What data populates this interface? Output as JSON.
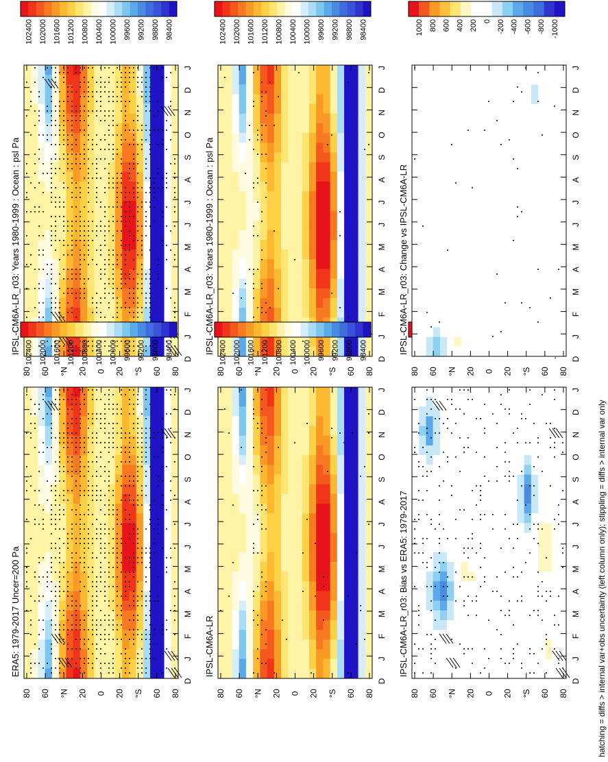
{
  "figure": {
    "footnote": "hatching = diffs > internal var+obs uncertainty (left column only); stippling = diffs > internal var only",
    "colors": {
      "abs_scale": [
        "#e8141b",
        "#f0351b",
        "#f4581e",
        "#f77a22",
        "#f99a27",
        "#fbb830",
        "#fdd146",
        "#fee571",
        "#fff3a6",
        "#fffbe0",
        "#ffffff",
        "#d6eefb",
        "#a9dcf6",
        "#7dc6ef",
        "#5aa9e8",
        "#4a8be2",
        "#3f6ddd",
        "#3a53d9",
        "#2f34cf",
        "#1f13c4"
      ],
      "diff_scale": [
        "#e8141b",
        "#f4581e",
        "#f99a27",
        "#fdc03a",
        "#fee571",
        "#fff7c2",
        "#ffffff",
        "#ffffff",
        "#c8e8f8",
        "#8ed0f2",
        "#5aa9e8",
        "#4a8be2",
        "#3f6ddd",
        "#2f34cf",
        "#1f13c4"
      ]
    }
  },
  "chart_data": [
    {
      "type": "heatmap",
      "title": "IPSL-CM6A-LR_r03: Years 1980-1999 : Ocean : psl Pa",
      "x_ticks": [
        "D",
        "J",
        "F",
        "M",
        "A",
        "M",
        "J",
        "J",
        "A",
        "S",
        "O",
        "N",
        "D",
        "J"
      ],
      "y_ticks": [
        "80",
        "60",
        "°N",
        "20",
        "0",
        "20",
        "°S",
        "60",
        "80"
      ],
      "colorbar_labels": [
        "102400",
        "102000",
        "101600",
        "101200",
        "100800",
        "100400",
        "100000",
        "99600",
        "99200",
        "98800",
        "98400"
      ],
      "field": "abs",
      "stipple": "heavy",
      "hatch": true
    },
    {
      "type": "heatmap",
      "title": "IPSL-CM6A-LR_r03: Years 1980-1999 : Ocean : psl Pa",
      "x_ticks": [
        "D",
        "J",
        "F",
        "M",
        "A",
        "M",
        "J",
        "J",
        "A",
        "S",
        "O",
        "N",
        "D",
        "J"
      ],
      "y_ticks": [
        "80",
        "60",
        "°N",
        "20",
        "0",
        "20",
        "°S",
        "60",
        "80"
      ],
      "colorbar_labels": [
        "102400",
        "102000",
        "101600",
        "101200",
        "100800",
        "100400",
        "100000",
        "99600",
        "99200",
        "98800",
        "98400"
      ],
      "field": "abs",
      "stipple": "light",
      "hatch": false
    },
    {
      "type": "heatmap",
      "title": "ERA5: 1979-2017 Uncer=200 Pa",
      "x_ticks": [
        "D",
        "J",
        "F",
        "M",
        "A",
        "M",
        "J",
        "J",
        "A",
        "S",
        "O",
        "N",
        "D",
        "J"
      ],
      "y_ticks": [
        "80",
        "60",
        "°N",
        "20",
        "0",
        "20",
        "°S",
        "60",
        "80"
      ],
      "colorbar_labels": [
        "102400",
        "102000",
        "101600",
        "101200",
        "100800",
        "100400",
        "100000",
        "99600",
        "99200",
        "98800",
        "98400"
      ],
      "field": "abs",
      "stipple": "heavy",
      "hatch": true
    },
    {
      "type": "heatmap",
      "title": "IPSL-CM6A-LR",
      "x_ticks": [
        "D",
        "J",
        "F",
        "M",
        "A",
        "M",
        "J",
        "J",
        "A",
        "S",
        "O",
        "N",
        "D",
        "J"
      ],
      "y_ticks": [
        "80",
        "60",
        "°N",
        "20",
        "0",
        "20",
        "°S",
        "60",
        "80"
      ],
      "colorbar_labels": [
        "102400",
        "102000",
        "101600",
        "101200",
        "100800",
        "100400",
        "100000",
        "99600",
        "99200",
        "98800",
        "98400"
      ],
      "field": "abs",
      "stipple": "light",
      "hatch": false
    },
    {
      "type": "heatmap",
      "title": "IPSL-CM6A-LR_r03: Bias vs ERA5: 1979-2017",
      "x_ticks": [
        "D",
        "J",
        "F",
        "M",
        "A",
        "M",
        "J",
        "J",
        "A",
        "S",
        "O",
        "N",
        "D",
        "J"
      ],
      "y_ticks": [
        "80",
        "60",
        "°N",
        "20",
        "0",
        "20",
        "°S",
        "60",
        "80"
      ],
      "colorbar_labels": [
        "1000",
        "800",
        "600",
        "400",
        "200",
        "0",
        "-200",
        "-400",
        "-600",
        "-800",
        "-1000"
      ],
      "field": "bias",
      "stipple": "medium",
      "hatch": true
    },
    {
      "type": "heatmap",
      "title": "IPSL-CM6A-LR_r03: Change vs IPSL-CM6A-LR",
      "x_ticks": [
        "D",
        "J",
        "F",
        "M",
        "A",
        "M",
        "J",
        "J",
        "A",
        "S",
        "O",
        "N",
        "D",
        "J"
      ],
      "y_ticks": [
        "80",
        "60",
        "°N",
        "20",
        "0",
        "20",
        "°S",
        "60",
        "80"
      ],
      "colorbar_labels": [
        "1000",
        "800",
        "600",
        "400",
        "200",
        "0",
        "-200",
        "-400",
        "-600",
        "-800",
        "-1000"
      ],
      "field": "change",
      "stipple": "sparse",
      "hatch": false
    }
  ]
}
